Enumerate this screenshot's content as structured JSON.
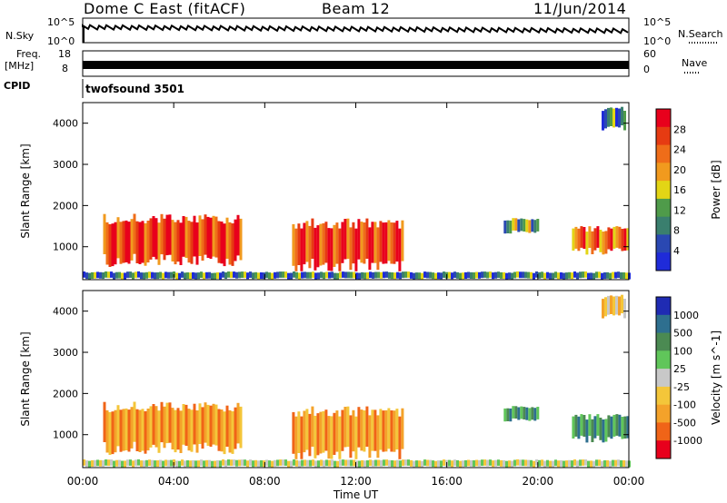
{
  "header": {
    "title": "Dome C East (fitACF)",
    "beam": "Beam 12",
    "date": "11/Jun/2014"
  },
  "sky_panel": {
    "left_label": "N.Sky",
    "left_ticks": [
      "10^5",
      "10^0"
    ],
    "right_label": "N.Search",
    "right_ticks": [
      "10^5",
      "10^0"
    ]
  },
  "freq_panel": {
    "left_label": "Freq.",
    "left_unit": "[MHz]",
    "left_ticks": [
      "18",
      "8"
    ],
    "right_label": "Nave",
    "right_ticks": [
      "60",
      "0"
    ],
    "cpid_label": "CPID",
    "program": "twofsound 3501"
  },
  "colors": {
    "power_scale": [
      "#1f2bd9",
      "#2a48b2",
      "#3a7f6e",
      "#4f9b4a",
      "#e3d515",
      "#f19a1e",
      "#ef6d19",
      "#e63b12",
      "#e8001c"
    ],
    "velocity_scale": [
      "#e8001c",
      "#f06418",
      "#f4a22a",
      "#f4c63a",
      "#c8c8c8",
      "#60c65a",
      "#4b8a52",
      "#2e6f8f",
      "#1f2bb3"
    ]
  },
  "chart_data": [
    {
      "type": "heatmap",
      "title": "",
      "xlabel": "",
      "ylabel": "Slant Range [km]",
      "x_ticks": [
        "00:00",
        "04:00",
        "08:00",
        "12:00",
        "16:00",
        "20:00",
        "00:00"
      ],
      "y_ticks": [
        "1000",
        "2000",
        "3000",
        "4000"
      ],
      "ylim": [
        200,
        4500
      ],
      "xlim_hours": [
        0,
        24
      ],
      "colorbar_label": "Power [dB]",
      "colorbar_ticks": [
        "4",
        "8",
        "12",
        "16",
        "20",
        "24",
        "28"
      ],
      "colorbar_range": [
        0,
        30
      ],
      "regions": [
        {
          "t": [
            0.9,
            7.0
          ],
          "r": [
            500,
            1800
          ],
          "value": 26
        },
        {
          "t": [
            9.2,
            14.0
          ],
          "r": [
            400,
            1700
          ],
          "value": 27
        },
        {
          "t": [
            21.5,
            24.0
          ],
          "r": [
            800,
            1500
          ],
          "value": 22
        },
        {
          "t": [
            18.5,
            20.0
          ],
          "r": [
            1300,
            1700
          ],
          "value": 12
        },
        {
          "t": [
            22.8,
            23.8
          ],
          "r": [
            3800,
            4400
          ],
          "value": 8
        },
        {
          "t": [
            0.0,
            24.0
          ],
          "r": [
            200,
            400
          ],
          "value": 6
        }
      ]
    },
    {
      "type": "heatmap",
      "title": "",
      "xlabel": "Time UT",
      "ylabel": "Slant Range [km]",
      "x_ticks": [
        "00:00",
        "04:00",
        "08:00",
        "12:00",
        "16:00",
        "20:00",
        "00:00"
      ],
      "y_ticks": [
        "1000",
        "2000",
        "3000",
        "4000"
      ],
      "ylim": [
        200,
        4500
      ],
      "xlim_hours": [
        0,
        24
      ],
      "colorbar_label": "Velocity [m s^-1]",
      "colorbar_ticks": [
        "1000",
        "500",
        "100",
        "25",
        "-25",
        "-100",
        "-500",
        "-1000"
      ],
      "regions": [
        {
          "t": [
            0.9,
            7.0
          ],
          "r": [
            500,
            1800
          ],
          "value": -300
        },
        {
          "t": [
            9.2,
            14.0
          ],
          "r": [
            400,
            1700
          ],
          "value": -250
        },
        {
          "t": [
            21.5,
            24.0
          ],
          "r": [
            800,
            1500
          ],
          "value": 100
        },
        {
          "t": [
            18.5,
            20.0
          ],
          "r": [
            1300,
            1700
          ],
          "value": 300
        },
        {
          "t": [
            22.8,
            23.8
          ],
          "r": [
            3800,
            4400
          ],
          "value": -30
        },
        {
          "t": [
            0.0,
            24.0
          ],
          "r": [
            200,
            400
          ],
          "value": 0
        }
      ]
    }
  ]
}
